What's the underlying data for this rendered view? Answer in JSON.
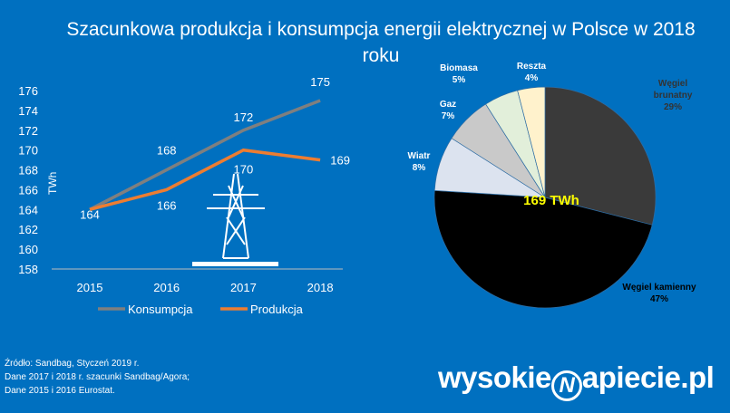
{
  "title": "Szacunkowa produkcja i konsumpcja energii elektrycznej w Polsce w 2018 roku",
  "chart_data": [
    {
      "type": "line",
      "categories": [
        "2015",
        "2016",
        "2017",
        "2018"
      ],
      "ylabel": "TWh",
      "ylim": [
        158,
        176
      ],
      "yticks": [
        158,
        160,
        162,
        164,
        166,
        168,
        170,
        172,
        174,
        176
      ],
      "grid": false,
      "legend": "bottom",
      "series": [
        {
          "name": "Konsumpcja",
          "values": [
            164,
            168,
            172,
            175
          ],
          "color": "#7f7f7f"
        },
        {
          "name": "Produkcja",
          "values": [
            164,
            166,
            170,
            169
          ],
          "color": "#ed7d31"
        }
      ]
    },
    {
      "type": "pie",
      "center_label": "169 TWh",
      "center_color": "#ffff00",
      "slices": [
        {
          "label": "Węgiel brunatny",
          "value": 29,
          "pct": "29%",
          "color": "#3a3a3a"
        },
        {
          "label": "Węgiel kamienny",
          "value": 47,
          "pct": "47%",
          "color": "#000000"
        },
        {
          "label": "Wiatr",
          "value": 8,
          "pct": "8%",
          "color": "#dce3ef"
        },
        {
          "label": "Gaz",
          "value": 7,
          "pct": "7%",
          "color": "#c9c9c9"
        },
        {
          "label": "Biomasa",
          "value": 5,
          "pct": "5%",
          "color": "#e2efda"
        },
        {
          "label": "Reszta",
          "value": 4,
          "pct": "4%",
          "color": "#fff2cc"
        }
      ]
    }
  ],
  "source": [
    "Źródło: Sandbag, Styczeń 2019 r.",
    "Dane 2017 i 2018 r. szacunki Sandbag/Agora;",
    "Dane 2015 i 2016 Eurostat."
  ],
  "logo": "wysokienapiecie.pl"
}
